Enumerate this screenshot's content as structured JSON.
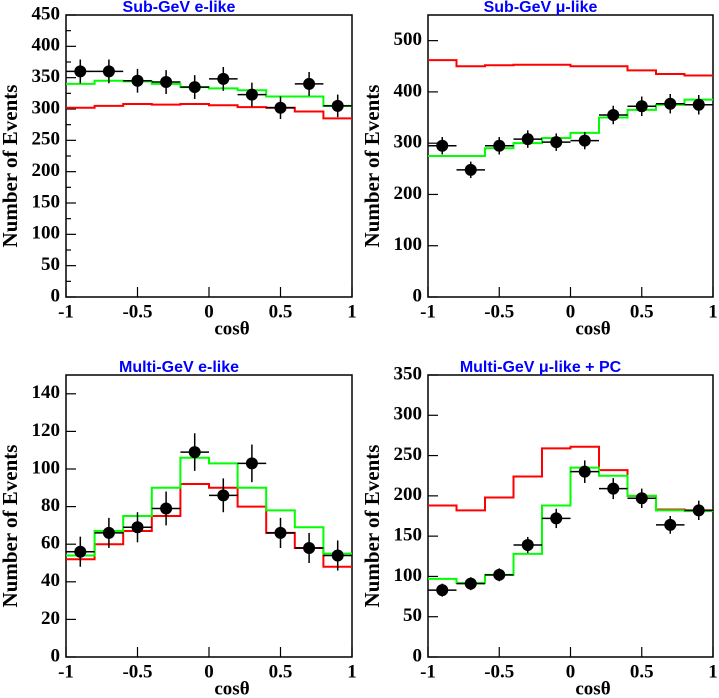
{
  "chart_data": [
    {
      "type": "histogram",
      "title": "Sub-GeV e-like",
      "xlabel": "cosθ",
      "ylabel": "Number of Events",
      "bins": [
        -1,
        -0.8,
        -0.6,
        -0.4,
        -0.2,
        0,
        0.2,
        0.4,
        0.6,
        0.8,
        1
      ],
      "points": {
        "color": "#000000",
        "values": [
          360,
          360,
          345,
          343,
          335,
          348,
          323,
          302,
          340,
          305
        ],
        "errors": [
          19,
          19,
          19,
          19,
          19,
          19,
          19,
          18,
          19,
          18
        ]
      },
      "series": [
        {
          "color": "#ff0000",
          "values": [
            302,
            305,
            308,
            307,
            308,
            306,
            303,
            302,
            296,
            285
          ]
        },
        {
          "color": "#00ff00",
          "values": [
            340,
            345,
            344,
            340,
            335,
            333,
            330,
            320,
            320,
            305
          ]
        }
      ],
      "xlim": [
        -1,
        1
      ],
      "xticks": [
        -1,
        -0.5,
        0,
        0.5,
        1
      ],
      "ylim": [
        0,
        450
      ],
      "yticks": [
        0,
        25,
        50,
        75,
        100,
        125,
        150,
        175,
        200,
        225,
        250,
        275,
        300,
        325,
        350,
        375,
        400,
        425,
        450
      ],
      "title_color": "#0000ff"
    },
    {
      "type": "histogram",
      "title": "Sub-GeV μ-like",
      "xlabel": "cosθ",
      "ylabel": "Number of Events",
      "bins": [
        -1,
        -0.8,
        -0.6,
        -0.4,
        -0.2,
        0,
        0.2,
        0.4,
        0.6,
        0.8,
        1
      ],
      "points": {
        "color": "#000000",
        "values": [
          295,
          248,
          295,
          308,
          302,
          305,
          355,
          372,
          377,
          375
        ],
        "errors": [
          17,
          16,
          17,
          17,
          17,
          17,
          18,
          19,
          19,
          19
        ]
      },
      "series": [
        {
          "color": "#ff0000",
          "values": [
            462,
            450,
            452,
            453,
            453,
            450,
            450,
            442,
            435,
            432
          ]
        },
        {
          "color": "#00ff00",
          "values": [
            275,
            275,
            290,
            300,
            310,
            320,
            350,
            365,
            375,
            385
          ]
        }
      ],
      "xlim": [
        -1,
        1
      ],
      "xticks": [
        -1,
        -0.5,
        0,
        0.5,
        1
      ],
      "ylim": [
        0,
        550
      ],
      "yticks": [
        0,
        100,
        200,
        300,
        400,
        500
      ],
      "title_color": "#0000ff"
    },
    {
      "type": "histogram",
      "title": "Multi-GeV e-like",
      "xlabel": "cosθ",
      "ylabel": "Number of Events",
      "bins": [
        -1,
        -0.8,
        -0.6,
        -0.4,
        -0.2,
        0,
        0.2,
        0.4,
        0.6,
        0.8,
        1
      ],
      "points": {
        "color": "#000000",
        "values": [
          56,
          66,
          69,
          79,
          109,
          86,
          103,
          66,
          58,
          54
        ],
        "errors": [
          8,
          8,
          8,
          9,
          10,
          9,
          10,
          8,
          8,
          8
        ]
      },
      "series": [
        {
          "color": "#ff0000",
          "values": [
            52,
            60,
            67,
            75,
            92,
            90,
            80,
            66,
            58,
            48
          ]
        },
        {
          "color": "#00ff00",
          "values": [
            54,
            67,
            75,
            90,
            106,
            103,
            90,
            78,
            69,
            55
          ]
        }
      ],
      "xlim": [
        -1,
        1
      ],
      "xticks": [
        -1,
        -0.5,
        0,
        0.5,
        1
      ],
      "ylim": [
        0,
        150
      ],
      "yticks": [
        0,
        20,
        40,
        60,
        80,
        100,
        120,
        140
      ],
      "title_color": "#0000ff"
    },
    {
      "type": "histogram",
      "title": "Multi-GeV μ-like + PC",
      "xlabel": "cosθ",
      "ylabel": "Number of Events",
      "bins": [
        -1,
        -0.8,
        -0.6,
        -0.4,
        -0.2,
        0,
        0.2,
        0.4,
        0.6,
        0.8,
        1
      ],
      "points": {
        "color": "#000000",
        "values": [
          83,
          91,
          102,
          139,
          172,
          230,
          209,
          197,
          164,
          182
        ],
        "errors": [
          8,
          8,
          8,
          10,
          12,
          14,
          13,
          12,
          11,
          12
        ]
      },
      "series": [
        {
          "color": "#ff0000",
          "values": [
            188,
            182,
            198,
            224,
            259,
            261,
            232,
            200,
            183,
            182
          ]
        },
        {
          "color": "#00ff00",
          "values": [
            97,
            92,
            102,
            128,
            188,
            235,
            225,
            200,
            182,
            181
          ]
        }
      ],
      "xlim": [
        -1,
        1
      ],
      "xticks": [
        -1,
        -0.5,
        0,
        0.5,
        1
      ],
      "ylim": [
        0,
        350
      ],
      "yticks": [
        0,
        50,
        100,
        150,
        200,
        250,
        300,
        350
      ],
      "title_color": "#0000ff"
    }
  ]
}
